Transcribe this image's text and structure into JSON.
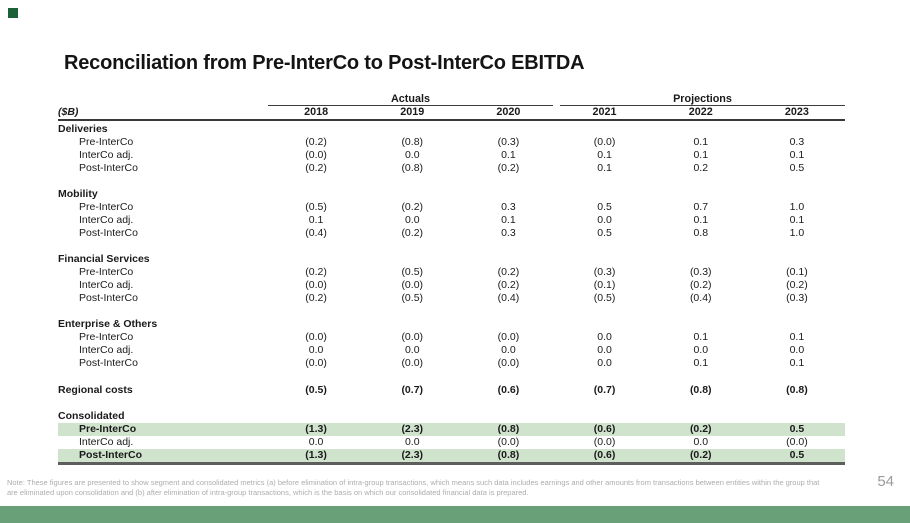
{
  "slide": {
    "title": "Reconciliation from Pre-InterCo to Post-InterCo EBITDA",
    "page_number": "54"
  },
  "branding": {
    "logo_color": "#1c6138",
    "footer_bar_color": "#69a077",
    "highlight_color": "#cfe3cd"
  },
  "table": {
    "unit_label": "($B)",
    "col_groups": [
      {
        "label": "Actuals",
        "span": 3
      },
      {
        "label": "Projections",
        "span": 3
      }
    ],
    "years": [
      "2018",
      "2019",
      "2020",
      "2021",
      "2022",
      "2023"
    ],
    "sections": [
      {
        "name": "Deliveries",
        "rows": [
          {
            "label": "Pre-InterCo",
            "values": [
              "(0.2)",
              "(0.8)",
              "(0.3)",
              "(0.0)",
              "0.1",
              "0.3"
            ]
          },
          {
            "label": "InterCo adj.",
            "values": [
              "(0.0)",
              "0.0",
              "0.1",
              "0.1",
              "0.1",
              "0.1"
            ]
          },
          {
            "label": "Post-InterCo",
            "values": [
              "(0.2)",
              "(0.8)",
              "(0.2)",
              "0.1",
              "0.2",
              "0.5"
            ]
          }
        ]
      },
      {
        "name": "Mobility",
        "rows": [
          {
            "label": "Pre-InterCo",
            "values": [
              "(0.5)",
              "(0.2)",
              "0.3",
              "0.5",
              "0.7",
              "1.0"
            ]
          },
          {
            "label": "InterCo adj.",
            "values": [
              "0.1",
              "0.0",
              "0.1",
              "0.0",
              "0.1",
              "0.1"
            ]
          },
          {
            "label": "Post-InterCo",
            "values": [
              "(0.4)",
              "(0.2)",
              "0.3",
              "0.5",
              "0.8",
              "1.0"
            ]
          }
        ]
      },
      {
        "name": "Financial Services",
        "rows": [
          {
            "label": "Pre-InterCo",
            "values": [
              "(0.2)",
              "(0.5)",
              "(0.2)",
              "(0.3)",
              "(0.3)",
              "(0.1)"
            ]
          },
          {
            "label": "InterCo adj.",
            "values": [
              "(0.0)",
              "(0.0)",
              "(0.2)",
              "(0.1)",
              "(0.2)",
              "(0.2)"
            ]
          },
          {
            "label": "Post-InterCo",
            "values": [
              "(0.2)",
              "(0.5)",
              "(0.4)",
              "(0.5)",
              "(0.4)",
              "(0.3)"
            ]
          }
        ]
      },
      {
        "name": "Enterprise & Others",
        "rows": [
          {
            "label": "Pre-InterCo",
            "values": [
              "(0.0)",
              "(0.0)",
              "(0.0)",
              "0.0",
              "0.1",
              "0.1"
            ]
          },
          {
            "label": "InterCo adj.",
            "values": [
              "0.0",
              "0.0",
              "0.0",
              "0.0",
              "0.0",
              "0.0"
            ]
          },
          {
            "label": "Post-InterCo",
            "values": [
              "(0.0)",
              "(0.0)",
              "(0.0)",
              "0.0",
              "0.1",
              "0.1"
            ]
          }
        ]
      }
    ],
    "regional_costs": {
      "label": "Regional costs",
      "values": [
        "(0.5)",
        "(0.7)",
        "(0.6)",
        "(0.7)",
        "(0.8)",
        "(0.8)"
      ]
    },
    "consolidated": {
      "name": "Consolidated",
      "rows": [
        {
          "label": "Pre-InterCo",
          "values": [
            "(1.3)",
            "(2.3)",
            "(0.8)",
            "(0.6)",
            "(0.2)",
            "0.5"
          ],
          "highlight": true
        },
        {
          "label": "InterCo adj.",
          "values": [
            "0.0",
            "0.0",
            "(0.0)",
            "(0.0)",
            "0.0",
            "(0.0)"
          ],
          "highlight": false
        },
        {
          "label": "Post-InterCo",
          "values": [
            "(1.3)",
            "(2.3)",
            "(0.8)",
            "(0.6)",
            "(0.2)",
            "0.5"
          ],
          "highlight": true
        }
      ]
    }
  },
  "footer": {
    "note_line1": "Note: These figures are presented to show segment and consolidated metrics (a) before elimination of intra-group transactions, which means such data includes earnings and other amounts from transactions between entities within the group that",
    "note_line2": "are eliminated upon consolidation and (b) after elimination of intra-group transactions, which is the basis on which our consolidated financial data is prepared."
  }
}
